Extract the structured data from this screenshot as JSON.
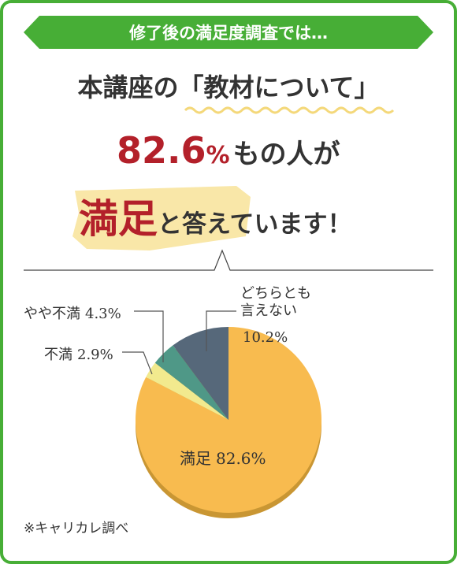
{
  "banner": "修了後の満足度調査では…",
  "headline": {
    "line1": "本講座の「教材について」",
    "figure": "82.6",
    "unit": "%",
    "line2_rest": "もの人が",
    "highlight": "満足",
    "line3_rest": "と答えています！"
  },
  "note": "※キャリカレ調べ",
  "chart_data": {
    "type": "pie",
    "categories": [
      "満足",
      "不満",
      "やや不満",
      "どちらとも言えない"
    ],
    "values": [
      82.6,
      2.9,
      4.3,
      10.2
    ],
    "value_labels": [
      "82.6%",
      "2.9%",
      "4.3%",
      "10.2%"
    ],
    "colors": [
      "#f8bb4f",
      "#f2ea8e",
      "#4f9887",
      "#56687a"
    ]
  }
}
